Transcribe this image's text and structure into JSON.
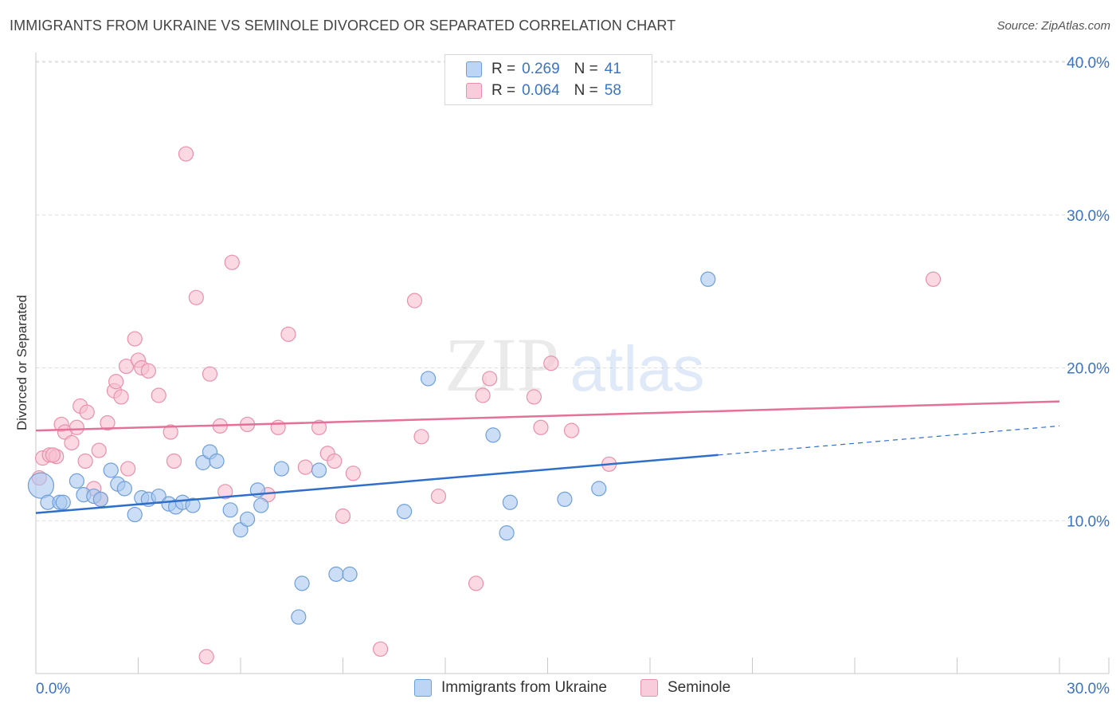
{
  "title": "IMMIGRANTS FROM UKRAINE VS SEMINOLE DIVORCED OR SEPARATED CORRELATION CHART",
  "source": "Source: ZipAtlas.com",
  "watermark": {
    "zip": "ZIP",
    "atlas": "atlas"
  },
  "legend": [
    {
      "r_label": "R =",
      "r_value": "0.269",
      "n_label": "N =",
      "n_value": "41"
    },
    {
      "r_label": "R =",
      "r_value": "0.064",
      "n_label": "N =",
      "n_value": "58"
    }
  ],
  "colors": {
    "ukraine_fill": "#a9c8f0",
    "ukraine_stroke": "#6f9fd8",
    "ukraine_line": "#2f6fcb",
    "seminole_fill": "#f7bfd0",
    "seminole_stroke": "#ea90ad",
    "seminole_line": "#e4719a",
    "axis_text": "#3a74c4",
    "grid": "#dddddd"
  },
  "chart_data": {
    "type": "scatter",
    "title": "IMMIGRANTS FROM UKRAINE VS SEMINOLE DIVORCED OR SEPARATED CORRELATION CHART",
    "xlabel": "",
    "ylabel": "Divorced or Separated",
    "xlim": [
      0,
      30
    ],
    "ylim": [
      0,
      40
    ],
    "x_tick_labels": [
      "0.0%",
      "30.0%"
    ],
    "y_ticks": [
      10,
      20,
      30,
      40
    ],
    "y_tick_labels": [
      "10.0%",
      "20.0%",
      "30.0%",
      "40.0%"
    ],
    "grid": true,
    "legend_position": "bottom-center",
    "series": [
      {
        "name": "Immigrants from Ukraine",
        "color": "#a9c8f0",
        "trend": {
          "x0": 0,
          "y0": 10.5,
          "x1": 20,
          "y1": 14.3,
          "dash_to_x": 30,
          "dash_to_y": 16.2
        },
        "points": [
          [
            0.15,
            12.3
          ],
          [
            0.35,
            11.2
          ],
          [
            0.7,
            11.2
          ],
          [
            1.2,
            12.6
          ],
          [
            1.4,
            11.7
          ],
          [
            1.7,
            11.6
          ],
          [
            1.9,
            11.4
          ],
          [
            2.2,
            13.3
          ],
          [
            2.4,
            12.4
          ],
          [
            2.6,
            12.1
          ],
          [
            2.9,
            10.4
          ],
          [
            3.1,
            11.5
          ],
          [
            3.3,
            11.4
          ],
          [
            3.6,
            11.6
          ],
          [
            3.9,
            11.1
          ],
          [
            4.1,
            10.9
          ],
          [
            4.3,
            11.2
          ],
          [
            4.6,
            11.0
          ],
          [
            4.9,
            13.8
          ],
          [
            5.1,
            14.5
          ],
          [
            5.3,
            13.9
          ],
          [
            5.7,
            10.7
          ],
          [
            6.0,
            9.4
          ],
          [
            6.2,
            10.1
          ],
          [
            6.5,
            12.0
          ],
          [
            6.6,
            11.0
          ],
          [
            7.2,
            13.4
          ],
          [
            7.7,
            3.7
          ],
          [
            7.8,
            5.9
          ],
          [
            8.3,
            13.3
          ],
          [
            8.8,
            6.5
          ],
          [
            9.2,
            6.5
          ],
          [
            10.8,
            10.6
          ],
          [
            11.5,
            19.3
          ],
          [
            13.4,
            15.6
          ],
          [
            13.9,
            11.2
          ],
          [
            13.8,
            9.2
          ],
          [
            15.5,
            11.4
          ],
          [
            16.5,
            12.1
          ],
          [
            19.7,
            25.8
          ],
          [
            0.8,
            11.2
          ]
        ]
      },
      {
        "name": "Seminole",
        "color": "#f7bfd0",
        "trend": {
          "x0": 0,
          "y0": 15.9,
          "x1": 30,
          "y1": 17.8
        },
        "points": [
          [
            0.1,
            12.8
          ],
          [
            0.2,
            14.1
          ],
          [
            0.4,
            14.3
          ],
          [
            0.6,
            14.2
          ],
          [
            0.5,
            14.3
          ],
          [
            0.75,
            16.3
          ],
          [
            0.85,
            15.8
          ],
          [
            1.05,
            15.1
          ],
          [
            1.2,
            16.1
          ],
          [
            1.3,
            17.5
          ],
          [
            1.45,
            13.9
          ],
          [
            1.5,
            17.1
          ],
          [
            1.7,
            12.1
          ],
          [
            1.85,
            14.6
          ],
          [
            1.9,
            11.4
          ],
          [
            2.1,
            16.4
          ],
          [
            2.3,
            18.5
          ],
          [
            2.35,
            19.1
          ],
          [
            2.5,
            18.1
          ],
          [
            2.65,
            20.1
          ],
          [
            2.7,
            13.4
          ],
          [
            2.9,
            21.9
          ],
          [
            3.0,
            20.5
          ],
          [
            3.1,
            20.0
          ],
          [
            3.3,
            19.8
          ],
          [
            3.6,
            18.2
          ],
          [
            3.95,
            15.8
          ],
          [
            4.05,
            13.9
          ],
          [
            4.4,
            34.0
          ],
          [
            4.7,
            24.6
          ],
          [
            5.0,
            1.1
          ],
          [
            5.1,
            19.6
          ],
          [
            5.4,
            16.2
          ],
          [
            5.55,
            11.9
          ],
          [
            5.75,
            26.9
          ],
          [
            6.2,
            16.3
          ],
          [
            6.8,
            11.7
          ],
          [
            7.1,
            16.1
          ],
          [
            7.4,
            22.2
          ],
          [
            7.9,
            13.5
          ],
          [
            8.3,
            16.1
          ],
          [
            8.55,
            14.4
          ],
          [
            8.75,
            13.9
          ],
          [
            9.0,
            10.3
          ],
          [
            9.3,
            13.1
          ],
          [
            10.1,
            1.6
          ],
          [
            11.1,
            24.4
          ],
          [
            11.3,
            15.5
          ],
          [
            11.8,
            11.6
          ],
          [
            12.9,
            5.9
          ],
          [
            13.1,
            18.2
          ],
          [
            13.3,
            19.3
          ],
          [
            14.6,
            18.1
          ],
          [
            14.8,
            16.1
          ],
          [
            15.1,
            20.3
          ],
          [
            15.7,
            15.9
          ],
          [
            16.8,
            13.7
          ],
          [
            26.3,
            25.8
          ]
        ]
      }
    ]
  }
}
